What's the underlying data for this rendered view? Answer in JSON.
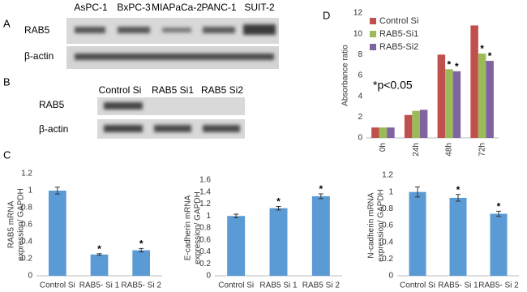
{
  "panel_labels": [
    "A",
    "B",
    "C",
    "D"
  ],
  "blot_a": {
    "lanes": [
      "AsPC-1",
      "BxPC-3",
      "MIAPaCa-2",
      "PANC-1",
      "SUIT-2"
    ],
    "rows": [
      "RAB5",
      "β-actin"
    ]
  },
  "blot_b": {
    "lanes": [
      "Control Si",
      "RAB5 Si1",
      "RAB5 Si2"
    ],
    "rows": [
      "RAB5",
      "β-actin"
    ]
  },
  "chart_data": [
    {
      "type": "bar",
      "y_label": [
        "Absorbance ratio"
      ],
      "annotation": "*p<0.05",
      "categories": [
        "0h",
        "24h",
        "48h",
        "72h"
      ],
      "series": [
        {
          "name": "Control Si",
          "color": "#c0504d",
          "values": [
            1,
            2.2,
            8,
            10.8
          ]
        },
        {
          "name": "RAB5-Si1",
          "color": "#9bbb59",
          "values": [
            1,
            2.6,
            6.6,
            8.1
          ],
          "significance": [
            null,
            null,
            "*",
            "*"
          ]
        },
        {
          "name": "RAB5-Si2",
          "color": "#8064a2",
          "values": [
            1,
            2.7,
            6.4,
            7.4
          ],
          "significance": [
            null,
            null,
            "*",
            "*"
          ]
        }
      ],
      "ylim": [
        0,
        12
      ],
      "yticks": [
        0,
        2,
        4,
        6,
        8,
        10,
        12
      ],
      "grid": false,
      "legend": "top-left"
    },
    {
      "type": "bar",
      "y_label": [
        "RAB5 mRNA",
        "expression/ GAPDH"
      ],
      "categories": [
        "Control Si",
        "RAB5- Si 1",
        "RAB5- Si 2"
      ],
      "values": [
        1.0,
        0.25,
        0.3
      ],
      "errors": [
        0.04,
        0.01,
        0.02
      ],
      "significance": [
        null,
        "*",
        "*"
      ],
      "color": "#5b9bd5",
      "ylim": [
        0,
        1.2
      ],
      "yticks": [
        0,
        0.2,
        0.4,
        0.6,
        0.8,
        1,
        1.2
      ],
      "grid": false
    },
    {
      "type": "bar",
      "y_label": [
        "E-cadherin mRNA",
        "expression/ GAPDH"
      ],
      "categories": [
        "Control Si",
        "RAB5 Si 1",
        "RAB5 Si 2"
      ],
      "values": [
        1.0,
        1.13,
        1.33
      ],
      "errors": [
        0.03,
        0.03,
        0.04
      ],
      "significance": [
        null,
        "*",
        "*"
      ],
      "color": "#5b9bd5",
      "ylim": [
        0,
        1.6
      ],
      "yticks": [
        0,
        0.2,
        0.4,
        0.6,
        0.8,
        1,
        1.2,
        1.4,
        1.6
      ],
      "grid": false
    },
    {
      "type": "bar",
      "y_label": [
        "N-cadherin mRNA",
        "expression/ GAPDH"
      ],
      "categories": [
        "Control Si",
        "RAB5- Si 1",
        "RAB5- Si 2"
      ],
      "values": [
        1.0,
        0.93,
        0.74
      ],
      "errors": [
        0.06,
        0.04,
        0.03
      ],
      "significance": [
        null,
        "*",
        "*"
      ],
      "color": "#5b9bd5",
      "ylim": [
        0,
        1.2
      ],
      "yticks": [
        0,
        0.2,
        0.4,
        0.6,
        0.8,
        1,
        1.2
      ],
      "grid": false
    }
  ]
}
